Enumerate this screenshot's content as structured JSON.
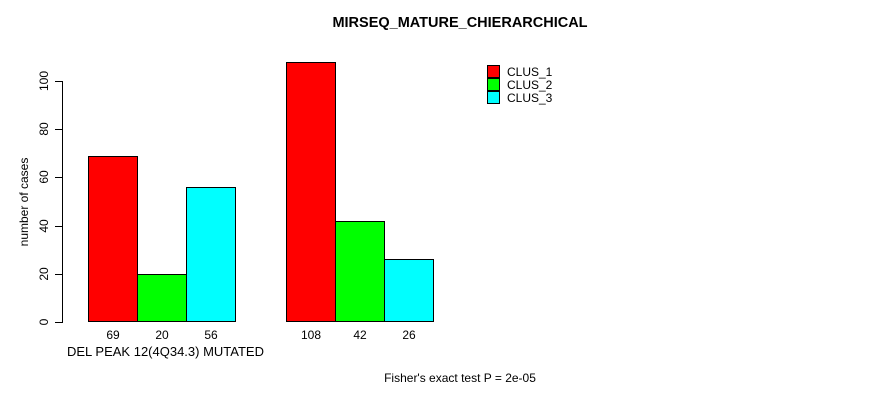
{
  "chart_data": {
    "type": "bar",
    "title": "MIRSEQ_MATURE_CHIERARCHICAL",
    "ylabel": "number of cases",
    "xlabel": "DEL PEAK 12(4Q34.3) MUTATED",
    "annotation": "Fisher's exact test P = 2e-05",
    "ylim": [
      0,
      108
    ],
    "yticks": [
      0,
      20,
      40,
      60,
      80,
      100
    ],
    "grid": false,
    "legend_position": "top-right-inside",
    "categories": [
      "group-1",
      "group-2"
    ],
    "series": [
      {
        "name": "CLUS_1",
        "color": "#ff0000",
        "values": [
          69,
          108
        ]
      },
      {
        "name": "CLUS_2",
        "color": "#00ff00",
        "values": [
          20,
          42
        ]
      },
      {
        "name": "CLUS_3",
        "color": "#00ffff",
        "values": [
          56,
          26
        ]
      }
    ],
    "bar_value_labels": [
      [
        69,
        20,
        56
      ],
      [
        108,
        42,
        26
      ]
    ],
    "colors": {
      "bar_border": "#000000",
      "axis": "#000000",
      "text": "#000000",
      "background": "#ffffff"
    }
  }
}
